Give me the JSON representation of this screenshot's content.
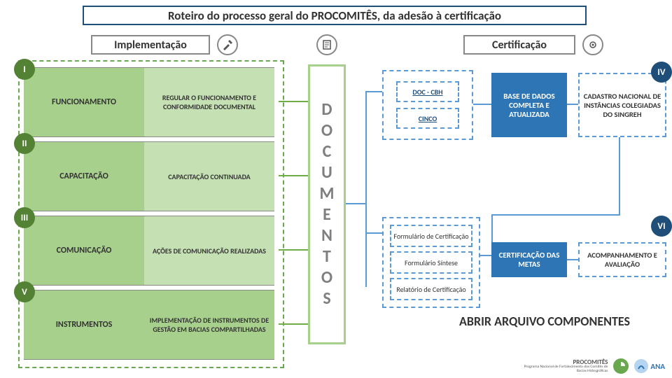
{
  "title": "Roteiro do processo geral do PROCOMITÊS, da adesão à certificação",
  "sections": {
    "impl": {
      "label": "Implementação"
    },
    "cert": {
      "label": "Certificação"
    }
  },
  "colors": {
    "green_dark": "#548235",
    "green_mid": "#70ad47",
    "green_light": "#a8d08d",
    "green_vlight": "#c5e0b3",
    "blue_dash": "#5b9bd5",
    "blue_dark": "#1f4e79",
    "blue_fill": "#2e75b6",
    "gray": "#7f7f7f"
  },
  "rows": [
    {
      "roman": "I",
      "main": "FUNCIONAMENTO",
      "sub": "REGULAR O FUNCIONAMENTO E CONFORMIDADE DOCUMENTAL"
    },
    {
      "roman": "II",
      "main": "CAPACITAÇÃO",
      "sub": "CAPACITAÇÃO CONTINUADA"
    },
    {
      "roman": "III",
      "main": "COMUNICAÇÃO",
      "sub": "AÇÕES DE COMUNICAÇÃO REALIZADAS"
    },
    {
      "roman": "V",
      "main": "INSTRUMENTOS",
      "sub": "IMPLEMENTAÇÃO DE INSTRUMENTOS DE GESTÃO EM BACIAS COMPARTILHADAS"
    }
  ],
  "docs_label": "DOCUMENTOS",
  "right": {
    "doc_cbh": "DOC - CBH",
    "cinco": "CINCO",
    "base": "BASE DE DADOS COMPLETA E ATUALIZADA",
    "cadastro": "CADASTRO NACIONAL DE INSTÂNCIAS COLEGIADAS DO SINGREH",
    "roman_iv": "IV",
    "form_cert": "Formulário de Certificação",
    "form_sint": "Formulário Síntese",
    "rel_cert": "Relatório de Certificação",
    "cert_metas": "CERTIFICAÇÃO DAS METAS",
    "acomp": "ACOMPANHAMENTO E AVALIAÇÃO",
    "roman_vi": "VI",
    "big_btn": "ABRIR ARQUIVO COMPONENTES"
  },
  "logos": {
    "procomites": "PROCOMITÊS",
    "procomites_sub": "Programa Nacional de Fortalecimento dos Comitês de Bacias Hidrográficas",
    "ana": "ANA"
  }
}
